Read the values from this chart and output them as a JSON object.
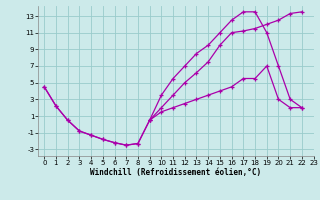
{
  "bg_color": "#cceaea",
  "grid_color": "#99cccc",
  "line_color": "#aa00aa",
  "xlabel": "Windchill (Refroidissement éolien,°C)",
  "xlim": [
    -0.5,
    23
  ],
  "ylim": [
    -3.8,
    14.2
  ],
  "xticks": [
    0,
    1,
    2,
    3,
    4,
    5,
    6,
    7,
    8,
    9,
    10,
    11,
    12,
    13,
    14,
    15,
    16,
    17,
    18,
    19,
    20,
    21,
    22,
    23
  ],
  "yticks": [
    -3,
    -1,
    1,
    3,
    5,
    7,
    9,
    11,
    13
  ],
  "curve_top_x": [
    0,
    1,
    2,
    3,
    4,
    5,
    6,
    7,
    8,
    9,
    10,
    11,
    12,
    13,
    14,
    15,
    16,
    17,
    18,
    19,
    20,
    21,
    22
  ],
  "curve_top_y": [
    4.5,
    2.2,
    0.5,
    -0.8,
    -1.3,
    -1.8,
    -2.2,
    -2.5,
    -2.3,
    0.5,
    3.5,
    5.5,
    7.0,
    8.5,
    9.5,
    11.0,
    12.5,
    13.5,
    13.5,
    11.0,
    7.0,
    3.0,
    2.0
  ],
  "curve_bottom_x": [
    0,
    1,
    2,
    3,
    4,
    5,
    6,
    7,
    8,
    9,
    10,
    11,
    12,
    13,
    14,
    15,
    16,
    17,
    18,
    19,
    20,
    21,
    22
  ],
  "curve_bottom_y": [
    4.5,
    2.2,
    0.5,
    -0.8,
    -1.3,
    -1.8,
    -2.2,
    -2.5,
    -2.3,
    0.5,
    2.0,
    3.5,
    5.0,
    6.2,
    7.5,
    9.5,
    11.0,
    11.2,
    11.5,
    12.0,
    12.5,
    13.3,
    13.5
  ],
  "curve_mid_x": [
    9,
    10,
    11,
    12,
    13,
    14,
    15,
    16,
    17,
    18,
    19,
    20,
    21,
    22
  ],
  "curve_mid_y": [
    0.5,
    1.5,
    2.0,
    2.5,
    3.0,
    3.5,
    4.0,
    4.5,
    5.5,
    5.5,
    7.0,
    3.0,
    2.0,
    2.0
  ],
  "xlabel_fontsize": 5.5,
  "tick_fontsize": 5
}
